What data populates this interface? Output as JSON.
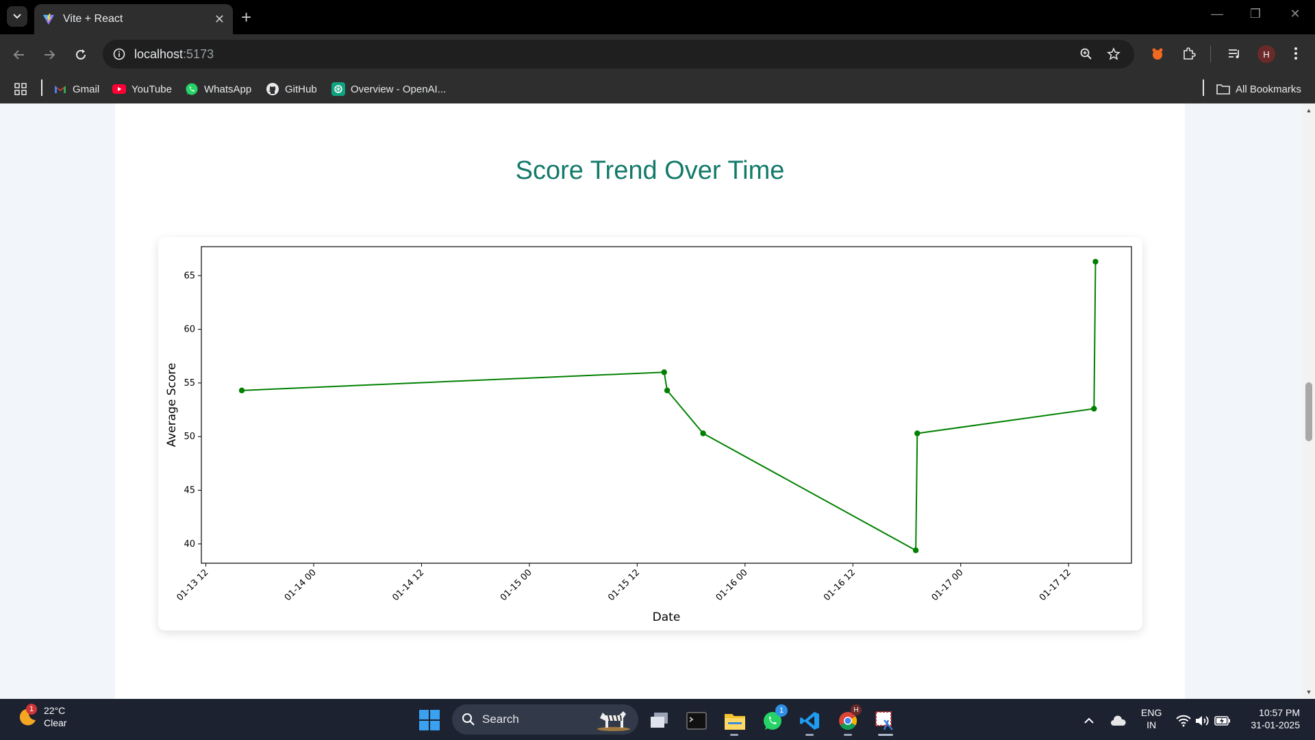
{
  "browser": {
    "tab_title": "Vite + React",
    "url_host": "localhost",
    "url_port": ":5173",
    "bookmarks": [
      {
        "label": "Gmail",
        "icon": "gmail-icon"
      },
      {
        "label": "YouTube",
        "icon": "youtube-icon"
      },
      {
        "label": "WhatsApp",
        "icon": "whatsapp-icon"
      },
      {
        "label": "GitHub",
        "icon": "github-icon"
      },
      {
        "label": "Overview - OpenAI...",
        "icon": "openai-icon"
      }
    ],
    "all_bookmarks_label": "All Bookmarks",
    "profile_initial": "H"
  },
  "page": {
    "title": "Score Trend Over Time"
  },
  "chart_data": {
    "type": "line",
    "title": "",
    "xlabel": "Date",
    "ylabel": "Average Score",
    "x_tick_labels": [
      "01-13 12",
      "01-14 00",
      "01-14 12",
      "01-15 00",
      "01-15 12",
      "01-16 00",
      "01-16 12",
      "01-17 00",
      "01-17 12"
    ],
    "y_ticks": [
      40,
      45,
      50,
      55,
      60,
      65
    ],
    "xlim": [
      "2025-01-13T11:30",
      "2025-01-17T19:00"
    ],
    "ylim": [
      38.2,
      67.7
    ],
    "x": [
      "2025-01-13T16:00",
      "2025-01-15T15:00",
      "2025-01-15T15:20",
      "2025-01-15T19:20",
      "2025-01-16T19:00",
      "2025-01-16T19:10",
      "2025-01-17T14:50",
      "2025-01-17T15:00"
    ],
    "series": [
      {
        "values": [
          54.3,
          56.0,
          54.3,
          50.3,
          39.4,
          50.3,
          52.6,
          66.3
        ],
        "color": "#008000"
      }
    ],
    "grid": false,
    "marker": "circle"
  },
  "taskbar": {
    "weather_temp": "22°C",
    "weather_desc": "Clear",
    "weather_badge": "1",
    "search_label": "Search",
    "whatsapp_badge": "1",
    "lang_line1": "ENG",
    "lang_line2": "IN",
    "time": "10:57 PM",
    "date": "31-01-2025"
  }
}
